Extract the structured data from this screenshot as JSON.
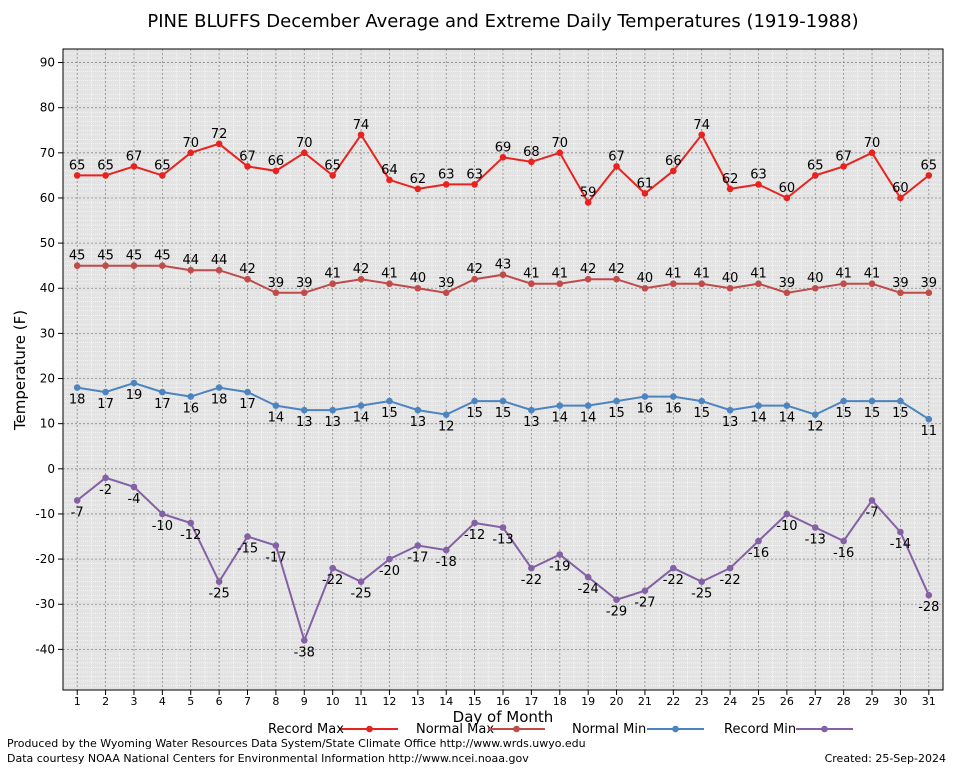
{
  "chart_data": {
    "type": "line",
    "title": "PINE BLUFFS December Average and Extreme Daily Temperatures (1919-1988)",
    "xlabel": "Day of Month",
    "ylabel": "Temperature (F)",
    "xlim": [
      0.5,
      31.5
    ],
    "ylim": [
      -49,
      93
    ],
    "y_ticks": [
      -40,
      -30,
      -20,
      -10,
      0,
      10,
      20,
      30,
      40,
      50,
      60,
      70,
      80,
      90
    ],
    "x": [
      1,
      2,
      3,
      4,
      5,
      6,
      7,
      8,
      9,
      10,
      11,
      12,
      13,
      14,
      15,
      16,
      17,
      18,
      19,
      20,
      21,
      22,
      23,
      24,
      25,
      26,
      27,
      28,
      29,
      30,
      31
    ],
    "grid": true,
    "legend_position": "bottom",
    "series": [
      {
        "name": "Record Max",
        "color": "#e8231f",
        "label_pos": "above",
        "values": [
          65,
          65,
          67,
          65,
          70,
          72,
          67,
          66,
          70,
          65,
          74,
          64,
          62,
          63,
          63,
          69,
          68,
          70,
          59,
          67,
          61,
          66,
          74,
          62,
          63,
          60,
          65,
          67,
          70,
          60,
          65
        ]
      },
      {
        "name": "Normal Max",
        "color": "#bf4b4b",
        "label_pos": "above",
        "values": [
          45,
          45,
          45,
          45,
          44,
          44,
          42,
          39,
          39,
          41,
          42,
          41,
          40,
          39,
          42,
          43,
          41,
          41,
          42,
          42,
          40,
          41,
          41,
          40,
          41,
          39,
          40,
          41,
          41,
          39,
          39
        ]
      },
      {
        "name": "Normal Min",
        "color": "#4c84bf",
        "label_pos": "below",
        "values": [
          18,
          17,
          19,
          17,
          16,
          18,
          17,
          14,
          13,
          13,
          14,
          15,
          13,
          12,
          15,
          15,
          13,
          14,
          14,
          15,
          16,
          16,
          15,
          13,
          14,
          14,
          12,
          15,
          15,
          15,
          11
        ]
      },
      {
        "name": "Record Min",
        "color": "#8460a4",
        "label_pos": "below",
        "values": [
          -7,
          -2,
          -4,
          -10,
          -12,
          -25,
          -15,
          -17,
          -38,
          -22,
          -25,
          -20,
          -17,
          -18,
          -12,
          -13,
          -22,
          -19,
          -24,
          -29,
          -27,
          -22,
          -25,
          -22,
          -16,
          -10,
          -13,
          -16,
          -7,
          -14,
          -28
        ]
      }
    ]
  },
  "footer": {
    "produced": "Produced by the Wyoming Water Resources Data System/State Climate Office http://www.wrds.uwyo.edu",
    "courtesy": "Data courtesy NOAA National Centers for Environmental Information http://www.ncei.noaa.gov",
    "created": "Created:  25-Sep-2024"
  }
}
